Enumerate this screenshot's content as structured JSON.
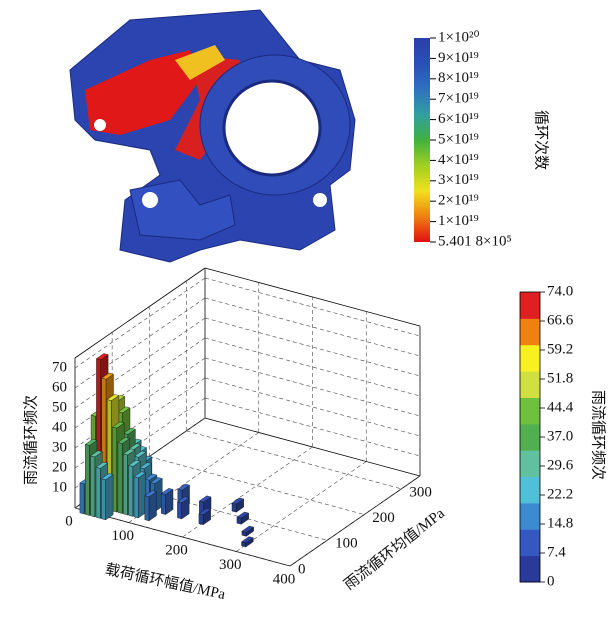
{
  "figure_top": {
    "colorbar": {
      "title": "循环次数",
      "labels": [
        "1×10²⁰",
        "9×10¹⁹",
        "8×10¹⁹",
        "7×10¹⁹",
        "6×10¹⁹",
        "5×10¹⁹",
        "4×10¹⁹",
        "3×10¹⁹",
        "2×10¹⁹",
        "1×10¹⁹",
        "5.401 8×10⁵"
      ],
      "colors": [
        "#2a3fa8",
        "#2a4fb8",
        "#3070c0",
        "#30a0a0",
        "#40b040",
        "#a0d020",
        "#f0e020",
        "#f08010",
        "#e01010"
      ]
    }
  },
  "figure_bottom": {
    "zlabel": "雨流循环频次",
    "xlabel": "载荷循环幅值/MPa",
    "ylabel": "雨流循环均值/MPa",
    "xlim": [
      0,
      400
    ],
    "ylim": [
      0,
      350
    ],
    "zlim": [
      0,
      75
    ],
    "xticks": [
      0,
      100,
      200,
      300,
      400
    ],
    "yticks": [
      0,
      100,
      200,
      300
    ],
    "zticks": [
      10,
      20,
      30,
      40,
      50,
      60,
      70
    ],
    "bars": [
      [
        20,
        0,
        15
      ],
      [
        20,
        30,
        45
      ],
      [
        20,
        60,
        25
      ],
      [
        30,
        0,
        35
      ],
      [
        30,
        30,
        74
      ],
      [
        30,
        60,
        40
      ],
      [
        40,
        0,
        30
      ],
      [
        40,
        30,
        65
      ],
      [
        40,
        60,
        50
      ],
      [
        40,
        90,
        20
      ],
      [
        50,
        0,
        25
      ],
      [
        50,
        30,
        55
      ],
      [
        50,
        60,
        45
      ],
      [
        50,
        90,
        25
      ],
      [
        60,
        0,
        20
      ],
      [
        60,
        30,
        42
      ],
      [
        60,
        60,
        35
      ],
      [
        60,
        90,
        22
      ],
      [
        70,
        30,
        35
      ],
      [
        70,
        60,
        28
      ],
      [
        70,
        90,
        18
      ],
      [
        80,
        30,
        30
      ],
      [
        80,
        60,
        25
      ],
      [
        90,
        30,
        25
      ],
      [
        90,
        60,
        20
      ],
      [
        100,
        30,
        20
      ],
      [
        100,
        60,
        15
      ],
      [
        110,
        60,
        14
      ],
      [
        120,
        30,
        12
      ],
      [
        130,
        60,
        10
      ],
      [
        140,
        90,
        9
      ],
      [
        160,
        60,
        8
      ],
      [
        180,
        90,
        6
      ],
      [
        200,
        60,
        5
      ],
      [
        220,
        120,
        4
      ],
      [
        250,
        90,
        3
      ],
      [
        280,
        60,
        2
      ],
      [
        300,
        30,
        2
      ]
    ],
    "colorbar": {
      "title": "雨流循环频次",
      "ticks": [
        {
          "value": 74,
          "label": "74.0"
        },
        {
          "value": 66.6,
          "label": "66.6"
        },
        {
          "value": 59.2,
          "label": "59.2"
        },
        {
          "value": 51.8,
          "label": "51.8"
        },
        {
          "value": 44.4,
          "label": "44.4"
        },
        {
          "value": 37,
          "label": "37.0"
        },
        {
          "value": 29.6,
          "label": "29.6"
        },
        {
          "value": 22.2,
          "label": "22.2"
        },
        {
          "value": 14.8,
          "label": "14.8"
        },
        {
          "value": 7.4,
          "label": "7.4"
        },
        0
      ],
      "colors": [
        "#2a3a9a",
        "#3458c0",
        "#3c8ad0",
        "#50c0d8",
        "#60c0a0",
        "#50b050",
        "#70c040",
        "#d0e040",
        "#f8f020",
        "#f08010",
        "#e02020"
      ]
    }
  }
}
